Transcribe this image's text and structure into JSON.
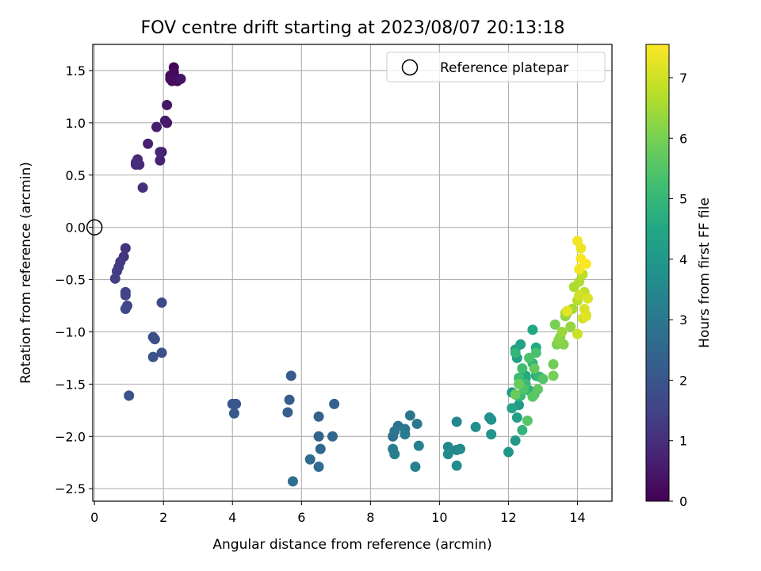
{
  "chart_data": {
    "type": "scatter",
    "title": "FOV centre drift starting at 2023/08/07 20:13:18",
    "xlabel": "Angular distance from reference (arcmin)",
    "ylabel": "Rotation from reference (arcmin)",
    "xlim": [
      -0.05,
      15
    ],
    "ylim": [
      -2.62,
      1.75
    ],
    "xticks": [
      0,
      2,
      4,
      6,
      8,
      10,
      12,
      14
    ],
    "yticks": [
      -2.5,
      -2.0,
      -1.5,
      -1.0,
      -0.5,
      0.0,
      0.5,
      1.0,
      1.5
    ],
    "grid": true,
    "legend": {
      "position": "top-right",
      "label": "Reference platepar"
    },
    "reference_point": {
      "x": 0.0,
      "y": 0.0
    },
    "colorbar": {
      "label": "Hours from first FF file",
      "colormap": "viridis",
      "range": [
        0,
        7.55
      ],
      "ticks": [
        0,
        1,
        2,
        3,
        4,
        5,
        6,
        7
      ]
    },
    "series": [
      {
        "x": [
          2.3,
          2.2,
          2.4,
          2.3,
          2.2,
          2.25,
          2.1,
          2.5,
          2.1,
          1.95,
          2.05,
          1.8,
          1.55,
          1.9,
          1.9,
          1.2,
          1.25,
          1.3,
          1.2,
          1.4,
          0.9,
          0.85,
          0.75,
          0.7,
          0.65,
          0.6,
          0.9,
          0.9,
          0.95,
          0.9,
          1.95,
          1.7,
          1.75,
          1.95,
          1.7,
          1.0,
          4.0,
          4.1,
          4.05,
          5.7,
          5.65,
          5.6,
          6.5,
          6.95,
          6.5,
          6.9,
          6.55,
          6.25,
          6.5,
          5.75,
          8.65,
          8.8,
          9.15,
          8.7,
          9.0,
          9.35,
          9.0,
          8.65,
          8.7,
          9.4,
          9.3,
          10.5,
          10.5,
          10.25,
          10.6,
          10.25,
          10.5,
          11.05,
          11.45,
          11.5,
          11.5,
          12.0,
          12.2,
          12.1,
          12.3,
          12.25,
          12.2,
          12.25,
          12.35,
          12.1,
          12.5,
          12.7,
          12.8,
          12.5,
          12.3,
          12.6,
          12.8,
          12.7,
          12.4,
          12.2,
          12.9,
          12.35,
          12.5,
          12.3,
          12.4,
          12.75,
          12.8,
          12.6,
          12.45,
          13.0,
          12.55,
          12.7,
          12.85,
          12.75,
          12.3,
          12.2,
          13.3,
          13.3,
          13.35,
          13.4,
          13.5,
          13.6,
          13.45,
          13.65,
          13.8,
          13.55,
          13.7,
          13.65,
          13.85,
          13.9,
          14.05,
          14.0,
          14.15,
          14.2,
          14.25,
          14.0,
          14.05,
          14.15,
          14.2,
          14.3,
          14.25,
          13.7,
          14.1,
          14.0,
          14.05,
          14.1,
          14.25
        ],
        "y": [
          1.53,
          1.45,
          1.4,
          1.48,
          1.42,
          1.4,
          1.0,
          1.42,
          1.17,
          0.72,
          1.02,
          0.96,
          0.8,
          0.64,
          0.72,
          0.6,
          0.65,
          0.6,
          0.62,
          0.38,
          -0.2,
          -0.28,
          -0.33,
          -0.38,
          -0.42,
          -0.49,
          -0.62,
          -0.65,
          -0.75,
          -0.78,
          -0.72,
          -1.05,
          -1.07,
          -1.2,
          -1.24,
          -1.61,
          -1.69,
          -1.69,
          -1.78,
          -1.42,
          -1.65,
          -1.77,
          -1.81,
          -1.69,
          -2.0,
          -2.0,
          -2.12,
          -2.22,
          -2.29,
          -2.43,
          -2.0,
          -1.9,
          -1.8,
          -1.95,
          -1.93,
          -1.88,
          -1.98,
          -2.12,
          -2.17,
          -2.09,
          -2.29,
          -1.86,
          -2.13,
          -2.1,
          -2.12,
          -2.17,
          -2.28,
          -1.91,
          -1.82,
          -1.84,
          -1.98,
          -2.15,
          -2.04,
          -1.58,
          -1.7,
          -1.82,
          -1.17,
          -1.25,
          -1.12,
          -1.73,
          -1.42,
          -0.98,
          -1.15,
          -1.44,
          -1.62,
          -1.56,
          -1.42,
          -1.3,
          -1.94,
          -1.2,
          -1.43,
          -1.61,
          -1.5,
          -1.44,
          -1.35,
          -1.6,
          -1.2,
          -1.25,
          -1.55,
          -1.45,
          -1.85,
          -1.62,
          -1.55,
          -1.35,
          -1.5,
          -1.6,
          -1.31,
          -1.42,
          -0.93,
          -1.12,
          -1.05,
          -1.12,
          -1.08,
          -0.85,
          -0.95,
          -1.0,
          -0.82,
          -0.82,
          -0.78,
          -0.57,
          -0.52,
          -0.7,
          -0.45,
          -0.62,
          -0.84,
          -1.02,
          -0.65,
          -0.87,
          -0.78,
          -0.68,
          -0.85,
          -0.8,
          -0.2,
          -0.13,
          -0.4,
          -0.3,
          -0.35
        ],
        "hours": []
      }
    ]
  }
}
